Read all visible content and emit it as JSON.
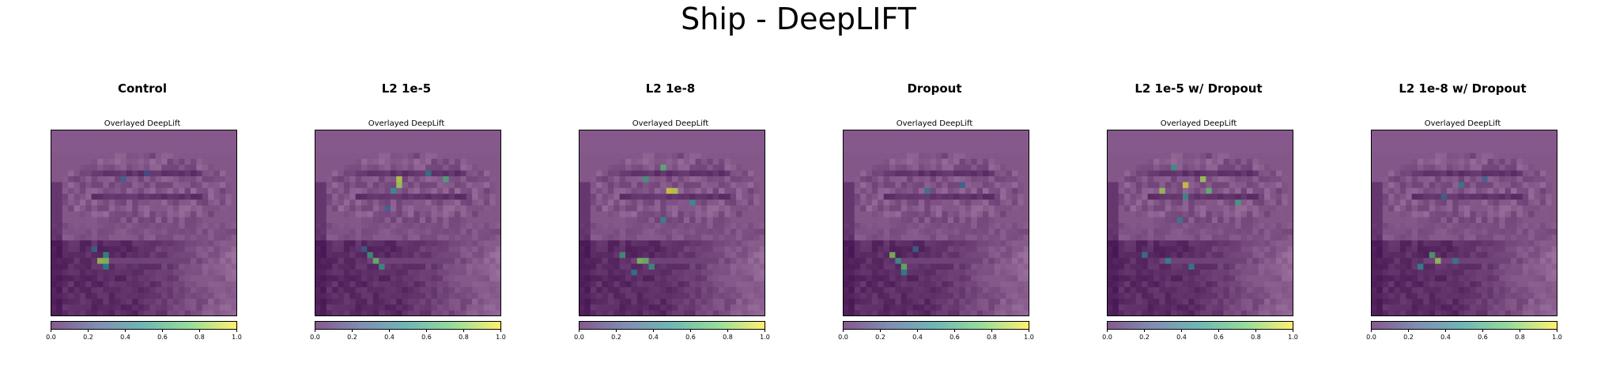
{
  "figure_title": "Ship - DeepLIFT",
  "colors": {
    "background": "#ffffff",
    "cmap_low": "#440154",
    "cmap_mid": "#21918c",
    "cmap_high": "#fde725",
    "overlay_tint": "#b48cb4"
  },
  "chart_data": [
    {
      "type": "heatmap",
      "title": "Control",
      "subtitle": "Overlayed DeepLift",
      "colorbar": {
        "range": [
          0,
          1
        ],
        "ticks": [
          "0.0",
          "0.2",
          "0.4",
          "0.6",
          "0.8",
          "1.0"
        ]
      },
      "grid_size": [
        32,
        32
      ],
      "hotspots": [
        {
          "row": 22,
          "col": 8,
          "value": 0.85
        },
        {
          "row": 22,
          "col": 9,
          "value": 0.8
        },
        {
          "row": 21,
          "col": 9,
          "value": 0.55
        },
        {
          "row": 23,
          "col": 9,
          "value": 0.5
        },
        {
          "row": 20,
          "col": 7,
          "value": 0.35
        },
        {
          "row": 8,
          "col": 12,
          "value": 0.3
        },
        {
          "row": 7,
          "col": 16,
          "value": 0.25
        }
      ]
    },
    {
      "type": "heatmap",
      "title": "L2 1e-5",
      "subtitle": "Overlayed DeepLift",
      "colorbar": {
        "range": [
          0,
          1
        ],
        "ticks": [
          "0.0",
          "0.2",
          "0.4",
          "0.6",
          "0.8",
          "1.0"
        ]
      },
      "grid_size": [
        32,
        32
      ],
      "hotspots": [
        {
          "row": 8,
          "col": 14,
          "value": 0.9
        },
        {
          "row": 9,
          "col": 14,
          "value": 0.85
        },
        {
          "row": 8,
          "col": 22,
          "value": 0.65
        },
        {
          "row": 10,
          "col": 13,
          "value": 0.5
        },
        {
          "row": 7,
          "col": 19,
          "value": 0.45
        },
        {
          "row": 22,
          "col": 10,
          "value": 0.75
        },
        {
          "row": 21,
          "col": 9,
          "value": 0.6
        },
        {
          "row": 23,
          "col": 11,
          "value": 0.55
        },
        {
          "row": 20,
          "col": 8,
          "value": 0.35
        },
        {
          "row": 13,
          "col": 12,
          "value": 0.3
        }
      ]
    },
    {
      "type": "heatmap",
      "title": "L2 1e-8",
      "subtitle": "Overlayed DeepLift",
      "colorbar": {
        "range": [
          0,
          1
        ],
        "ticks": [
          "0.0",
          "0.2",
          "0.4",
          "0.6",
          "0.8",
          "1.0"
        ]
      },
      "grid_size": [
        32,
        32
      ],
      "hotspots": [
        {
          "row": 10,
          "col": 15,
          "value": 0.95
        },
        {
          "row": 10,
          "col": 16,
          "value": 0.9
        },
        {
          "row": 6,
          "col": 14,
          "value": 0.7
        },
        {
          "row": 8,
          "col": 11,
          "value": 0.6
        },
        {
          "row": 12,
          "col": 19,
          "value": 0.5
        },
        {
          "row": 15,
          "col": 14,
          "value": 0.45
        },
        {
          "row": 22,
          "col": 10,
          "value": 0.8
        },
        {
          "row": 22,
          "col": 11,
          "value": 0.75
        },
        {
          "row": 21,
          "col": 7,
          "value": 0.6
        },
        {
          "row": 23,
          "col": 12,
          "value": 0.55
        },
        {
          "row": 24,
          "col": 9,
          "value": 0.45
        }
      ]
    },
    {
      "type": "heatmap",
      "title": "Dropout",
      "subtitle": "Overlayed DeepLift",
      "colorbar": {
        "range": [
          0,
          1
        ],
        "ticks": [
          "0.0",
          "0.2",
          "0.4",
          "0.6",
          "0.8",
          "1.0"
        ]
      },
      "grid_size": [
        32,
        32
      ],
      "hotspots": [
        {
          "row": 21,
          "col": 8,
          "value": 0.8
        },
        {
          "row": 23,
          "col": 10,
          "value": 0.75
        },
        {
          "row": 22,
          "col": 9,
          "value": 0.55
        },
        {
          "row": 24,
          "col": 10,
          "value": 0.5
        },
        {
          "row": 20,
          "col": 12,
          "value": 0.35
        },
        {
          "row": 10,
          "col": 14,
          "value": 0.4
        },
        {
          "row": 9,
          "col": 20,
          "value": 0.35
        }
      ]
    },
    {
      "type": "heatmap",
      "title": "L2 1e-5 w/ Dropout",
      "subtitle": "Overlayed DeepLift",
      "colorbar": {
        "range": [
          0,
          1
        ],
        "ticks": [
          "0.0",
          "0.2",
          "0.4",
          "0.6",
          "0.8",
          "1.0"
        ]
      },
      "grid_size": [
        32,
        32
      ],
      "hotspots": [
        {
          "row": 9,
          "col": 13,
          "value": 0.95
        },
        {
          "row": 10,
          "col": 9,
          "value": 0.85
        },
        {
          "row": 8,
          "col": 16,
          "value": 0.85
        },
        {
          "row": 10,
          "col": 17,
          "value": 0.7
        },
        {
          "row": 12,
          "col": 22,
          "value": 0.6
        },
        {
          "row": 6,
          "col": 11,
          "value": 0.55
        },
        {
          "row": 11,
          "col": 13,
          "value": 0.55
        },
        {
          "row": 15,
          "col": 12,
          "value": 0.4
        },
        {
          "row": 22,
          "col": 10,
          "value": 0.5
        },
        {
          "row": 23,
          "col": 14,
          "value": 0.45
        },
        {
          "row": 21,
          "col": 6,
          "value": 0.4
        }
      ]
    },
    {
      "type": "heatmap",
      "title": "L2 1e-8 w/ Dropout",
      "subtitle": "Overlayed DeepLift",
      "colorbar": {
        "range": [
          0,
          1
        ],
        "ticks": [
          "0.0",
          "0.2",
          "0.4",
          "0.6",
          "0.8",
          "1.0"
        ]
      },
      "grid_size": [
        32,
        32
      ],
      "hotspots": [
        {
          "row": 22,
          "col": 11,
          "value": 0.85
        },
        {
          "row": 21,
          "col": 10,
          "value": 0.65
        },
        {
          "row": 23,
          "col": 8,
          "value": 0.5
        },
        {
          "row": 22,
          "col": 14,
          "value": 0.45
        },
        {
          "row": 9,
          "col": 15,
          "value": 0.4
        },
        {
          "row": 11,
          "col": 12,
          "value": 0.35
        },
        {
          "row": 8,
          "col": 19,
          "value": 0.3
        }
      ]
    }
  ]
}
